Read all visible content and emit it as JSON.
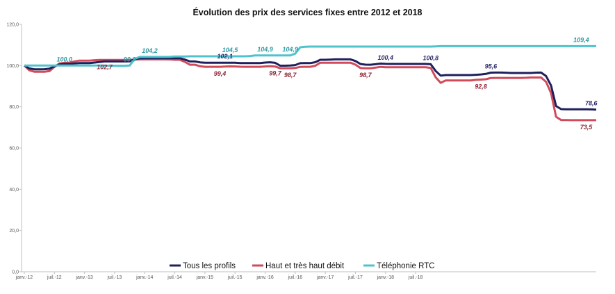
{
  "chart_data": {
    "type": "line",
    "title": "Évolution des prix des services fixes entre 2012 et 2018",
    "xlabel": "",
    "ylabel": "",
    "ylim": [
      0,
      120
    ],
    "y_ticks": [
      "0,0",
      "20,0",
      "40,0",
      "60,0",
      "80,0",
      "100,0",
      "120,0"
    ],
    "x_ticks": [
      "janv.-12",
      "juil.-12",
      "janv.-13",
      "juil.-13",
      "janv.-14",
      "juil.-14",
      "janv.-15",
      "juil.-15",
      "janv.-16",
      "juil.-16",
      "janv.-17",
      "juil.-17",
      "janv.-18",
      "juil.-18"
    ],
    "grid": false,
    "legend_position": "bottom",
    "series": [
      {
        "name": "Tous les profils",
        "color": "#1f1f5c",
        "values": [
          100.0,
          98.2,
          98.2,
          98.2,
          98.6,
          100.4,
          100.8,
          100.8,
          101.2,
          101.2,
          101.2,
          101.6,
          102.0,
          102.0,
          102.0,
          102.0,
          102.0,
          103.4,
          103.6,
          103.6,
          103.6,
          103.6,
          103.6,
          103.6,
          103.6,
          102.0,
          102.0,
          101.4,
          101.4,
          101.4,
          101.4,
          101.4,
          101.4,
          101.2,
          101.2,
          101.2,
          101.2,
          101.6,
          101.6,
          99.8,
          100.0,
          100.0,
          101.2,
          101.2,
          101.2,
          102.8,
          102.8,
          103.0,
          103.0,
          103.0,
          103.0,
          100.8,
          100.4,
          100.4,
          101.0,
          100.8,
          100.8,
          100.8,
          100.8,
          100.8,
          100.8,
          100.8,
          100.6,
          95.0,
          95.4,
          95.4,
          95.4,
          95.4,
          95.4,
          95.6,
          95.8,
          96.6,
          96.6,
          96.6,
          96.4,
          96.4,
          96.4,
          96.4,
          96.6,
          96.6,
          92.0,
          79.0,
          78.8,
          78.8,
          78.8,
          78.8,
          78.8,
          78.6
        ]
      },
      {
        "name": "Haut et très haut débit",
        "color": "#d14a5a",
        "values": [
          100.0,
          97.0,
          97.0,
          97.0,
          97.4,
          100.8,
          101.4,
          101.4,
          102.4,
          102.4,
          102.4,
          102.7,
          102.7,
          102.7,
          102.7,
          102.7,
          102.7,
          103.0,
          103.0,
          103.0,
          103.0,
          103.0,
          103.0,
          102.8,
          102.8,
          100.4,
          100.4,
          99.4,
          99.4,
          99.4,
          99.4,
          99.6,
          99.6,
          99.4,
          99.4,
          99.4,
          99.4,
          99.7,
          99.7,
          98.6,
          98.7,
          98.7,
          99.4,
          99.4,
          99.4,
          101.4,
          101.4,
          101.4,
          101.4,
          101.4,
          101.4,
          98.8,
          98.7,
          98.7,
          99.4,
          99.2,
          99.2,
          99.2,
          99.2,
          99.2,
          99.2,
          99.2,
          98.8,
          91.0,
          92.8,
          92.8,
          92.8,
          92.8,
          92.8,
          93.2,
          93.2,
          94.0,
          94.0,
          94.0,
          94.0,
          94.0,
          94.0,
          94.2,
          94.2,
          94.2,
          88.6,
          73.6,
          73.6,
          73.5,
          73.5,
          73.5,
          73.5,
          73.5
        ]
      },
      {
        "name": "Téléphonie RTC",
        "color": "#4ec3cc",
        "values": [
          100.0,
          100.0,
          100.0,
          100.0,
          100.0,
          100.0,
          100.0,
          100.0,
          100.0,
          100.0,
          100.0,
          100.0,
          100.0,
          99.9,
          99.9,
          99.9,
          99.9,
          104.2,
          104.2,
          104.2,
          104.2,
          104.2,
          104.2,
          104.4,
          104.4,
          104.5,
          104.5,
          104.5,
          104.5,
          104.5,
          104.5,
          104.5,
          104.5,
          104.5,
          104.5,
          104.9,
          104.9,
          104.9,
          104.9,
          104.9,
          104.9,
          104.9,
          109.0,
          109.2,
          109.2,
          109.2,
          109.2,
          109.2,
          109.2,
          109.2,
          109.2,
          109.2,
          109.2,
          109.2,
          109.2,
          109.2,
          109.2,
          109.2,
          109.2,
          109.2,
          109.2,
          109.2,
          109.2,
          109.4,
          109.4,
          109.4,
          109.4,
          109.4,
          109.4,
          109.4,
          109.4,
          109.4,
          109.4,
          109.4,
          109.4,
          109.4,
          109.4,
          109.4,
          109.4,
          109.4,
          109.4,
          109.4,
          109.4,
          109.4,
          109.4,
          109.4,
          109.4,
          109.4
        ]
      }
    ],
    "data_labels": [
      {
        "series": 2,
        "index": 8,
        "text": "100,0"
      },
      {
        "series": 1,
        "index": 16,
        "text": "102,7"
      },
      {
        "series": 2,
        "index": 25,
        "text": "104,2"
      },
      {
        "series": 2,
        "index": 21,
        "text": "99,9"
      },
      {
        "series": 2,
        "index": 41,
        "text": "104,5"
      },
      {
        "series": 0,
        "index": 40,
        "text": "102,1"
      },
      {
        "series": 1,
        "index": 39,
        "text": "99,4"
      },
      {
        "series": 2,
        "index": 48,
        "text": "104,9"
      },
      {
        "series": 1,
        "index": 50,
        "text": "99,7"
      },
      {
        "series": 2,
        "index": 53,
        "text": "104,9"
      },
      {
        "series": 1,
        "index": 53,
        "text": "98,7"
      },
      {
        "series": 0,
        "index": 72,
        "text": "100,4"
      },
      {
        "series": 1,
        "index": 68,
        "text": "98,7"
      },
      {
        "series": 0,
        "index": 81,
        "text": "100,8"
      },
      {
        "series": 0,
        "index": 93,
        "text": "95,6"
      },
      {
        "series": 1,
        "index": 91,
        "text": "92,8"
      },
      {
        "series": 2,
        "index": 111,
        "text": "109,4"
      },
      {
        "series": 0,
        "index": 113,
        "text": "78,6"
      },
      {
        "series": 1,
        "index": 112,
        "text": "73,5"
      }
    ]
  }
}
